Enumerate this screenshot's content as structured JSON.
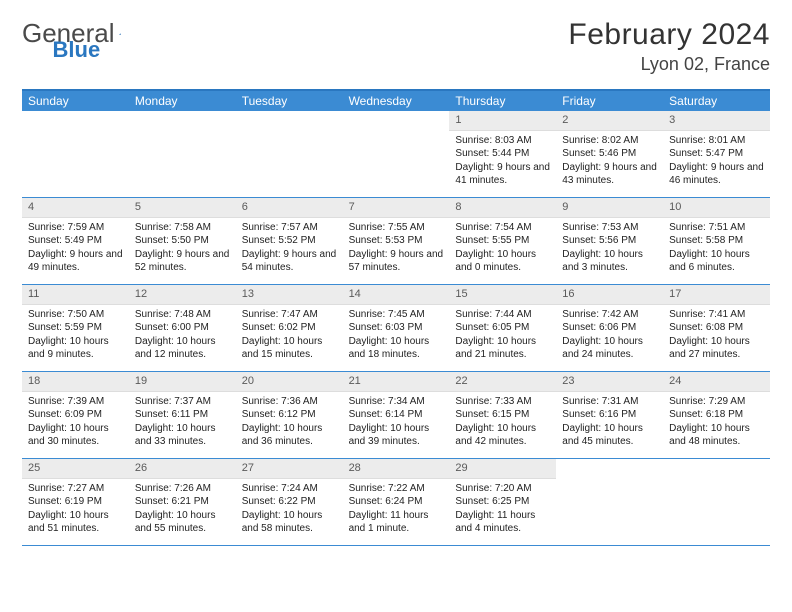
{
  "logo": {
    "word1": "General",
    "word2": "Blue"
  },
  "title": "February 2024",
  "location": "Lyon 02, France",
  "day_names": [
    "Sunday",
    "Monday",
    "Tuesday",
    "Wednesday",
    "Thursday",
    "Friday",
    "Saturday"
  ],
  "colors": {
    "header_bg": "#3b8bd3",
    "border": "#3b8bd3",
    "daynum_bg": "#ececec",
    "text": "#212121"
  },
  "weeks": [
    [
      {
        "empty": true
      },
      {
        "empty": true
      },
      {
        "empty": true
      },
      {
        "empty": true
      },
      {
        "num": "1",
        "sunrise": "Sunrise: 8:03 AM",
        "sunset": "Sunset: 5:44 PM",
        "daylight": "Daylight: 9 hours and 41 minutes."
      },
      {
        "num": "2",
        "sunrise": "Sunrise: 8:02 AM",
        "sunset": "Sunset: 5:46 PM",
        "daylight": "Daylight: 9 hours and 43 minutes."
      },
      {
        "num": "3",
        "sunrise": "Sunrise: 8:01 AM",
        "sunset": "Sunset: 5:47 PM",
        "daylight": "Daylight: 9 hours and 46 minutes."
      }
    ],
    [
      {
        "num": "4",
        "sunrise": "Sunrise: 7:59 AM",
        "sunset": "Sunset: 5:49 PM",
        "daylight": "Daylight: 9 hours and 49 minutes."
      },
      {
        "num": "5",
        "sunrise": "Sunrise: 7:58 AM",
        "sunset": "Sunset: 5:50 PM",
        "daylight": "Daylight: 9 hours and 52 minutes."
      },
      {
        "num": "6",
        "sunrise": "Sunrise: 7:57 AM",
        "sunset": "Sunset: 5:52 PM",
        "daylight": "Daylight: 9 hours and 54 minutes."
      },
      {
        "num": "7",
        "sunrise": "Sunrise: 7:55 AM",
        "sunset": "Sunset: 5:53 PM",
        "daylight": "Daylight: 9 hours and 57 minutes."
      },
      {
        "num": "8",
        "sunrise": "Sunrise: 7:54 AM",
        "sunset": "Sunset: 5:55 PM",
        "daylight": "Daylight: 10 hours and 0 minutes."
      },
      {
        "num": "9",
        "sunrise": "Sunrise: 7:53 AM",
        "sunset": "Sunset: 5:56 PM",
        "daylight": "Daylight: 10 hours and 3 minutes."
      },
      {
        "num": "10",
        "sunrise": "Sunrise: 7:51 AM",
        "sunset": "Sunset: 5:58 PM",
        "daylight": "Daylight: 10 hours and 6 minutes."
      }
    ],
    [
      {
        "num": "11",
        "sunrise": "Sunrise: 7:50 AM",
        "sunset": "Sunset: 5:59 PM",
        "daylight": "Daylight: 10 hours and 9 minutes."
      },
      {
        "num": "12",
        "sunrise": "Sunrise: 7:48 AM",
        "sunset": "Sunset: 6:00 PM",
        "daylight": "Daylight: 10 hours and 12 minutes."
      },
      {
        "num": "13",
        "sunrise": "Sunrise: 7:47 AM",
        "sunset": "Sunset: 6:02 PM",
        "daylight": "Daylight: 10 hours and 15 minutes."
      },
      {
        "num": "14",
        "sunrise": "Sunrise: 7:45 AM",
        "sunset": "Sunset: 6:03 PM",
        "daylight": "Daylight: 10 hours and 18 minutes."
      },
      {
        "num": "15",
        "sunrise": "Sunrise: 7:44 AM",
        "sunset": "Sunset: 6:05 PM",
        "daylight": "Daylight: 10 hours and 21 minutes."
      },
      {
        "num": "16",
        "sunrise": "Sunrise: 7:42 AM",
        "sunset": "Sunset: 6:06 PM",
        "daylight": "Daylight: 10 hours and 24 minutes."
      },
      {
        "num": "17",
        "sunrise": "Sunrise: 7:41 AM",
        "sunset": "Sunset: 6:08 PM",
        "daylight": "Daylight: 10 hours and 27 minutes."
      }
    ],
    [
      {
        "num": "18",
        "sunrise": "Sunrise: 7:39 AM",
        "sunset": "Sunset: 6:09 PM",
        "daylight": "Daylight: 10 hours and 30 minutes."
      },
      {
        "num": "19",
        "sunrise": "Sunrise: 7:37 AM",
        "sunset": "Sunset: 6:11 PM",
        "daylight": "Daylight: 10 hours and 33 minutes."
      },
      {
        "num": "20",
        "sunrise": "Sunrise: 7:36 AM",
        "sunset": "Sunset: 6:12 PM",
        "daylight": "Daylight: 10 hours and 36 minutes."
      },
      {
        "num": "21",
        "sunrise": "Sunrise: 7:34 AM",
        "sunset": "Sunset: 6:14 PM",
        "daylight": "Daylight: 10 hours and 39 minutes."
      },
      {
        "num": "22",
        "sunrise": "Sunrise: 7:33 AM",
        "sunset": "Sunset: 6:15 PM",
        "daylight": "Daylight: 10 hours and 42 minutes."
      },
      {
        "num": "23",
        "sunrise": "Sunrise: 7:31 AM",
        "sunset": "Sunset: 6:16 PM",
        "daylight": "Daylight: 10 hours and 45 minutes."
      },
      {
        "num": "24",
        "sunrise": "Sunrise: 7:29 AM",
        "sunset": "Sunset: 6:18 PM",
        "daylight": "Daylight: 10 hours and 48 minutes."
      }
    ],
    [
      {
        "num": "25",
        "sunrise": "Sunrise: 7:27 AM",
        "sunset": "Sunset: 6:19 PM",
        "daylight": "Daylight: 10 hours and 51 minutes."
      },
      {
        "num": "26",
        "sunrise": "Sunrise: 7:26 AM",
        "sunset": "Sunset: 6:21 PM",
        "daylight": "Daylight: 10 hours and 55 minutes."
      },
      {
        "num": "27",
        "sunrise": "Sunrise: 7:24 AM",
        "sunset": "Sunset: 6:22 PM",
        "daylight": "Daylight: 10 hours and 58 minutes."
      },
      {
        "num": "28",
        "sunrise": "Sunrise: 7:22 AM",
        "sunset": "Sunset: 6:24 PM",
        "daylight": "Daylight: 11 hours and 1 minute."
      },
      {
        "num": "29",
        "sunrise": "Sunrise: 7:20 AM",
        "sunset": "Sunset: 6:25 PM",
        "daylight": "Daylight: 11 hours and 4 minutes."
      },
      {
        "empty": true
      },
      {
        "empty": true
      }
    ]
  ]
}
